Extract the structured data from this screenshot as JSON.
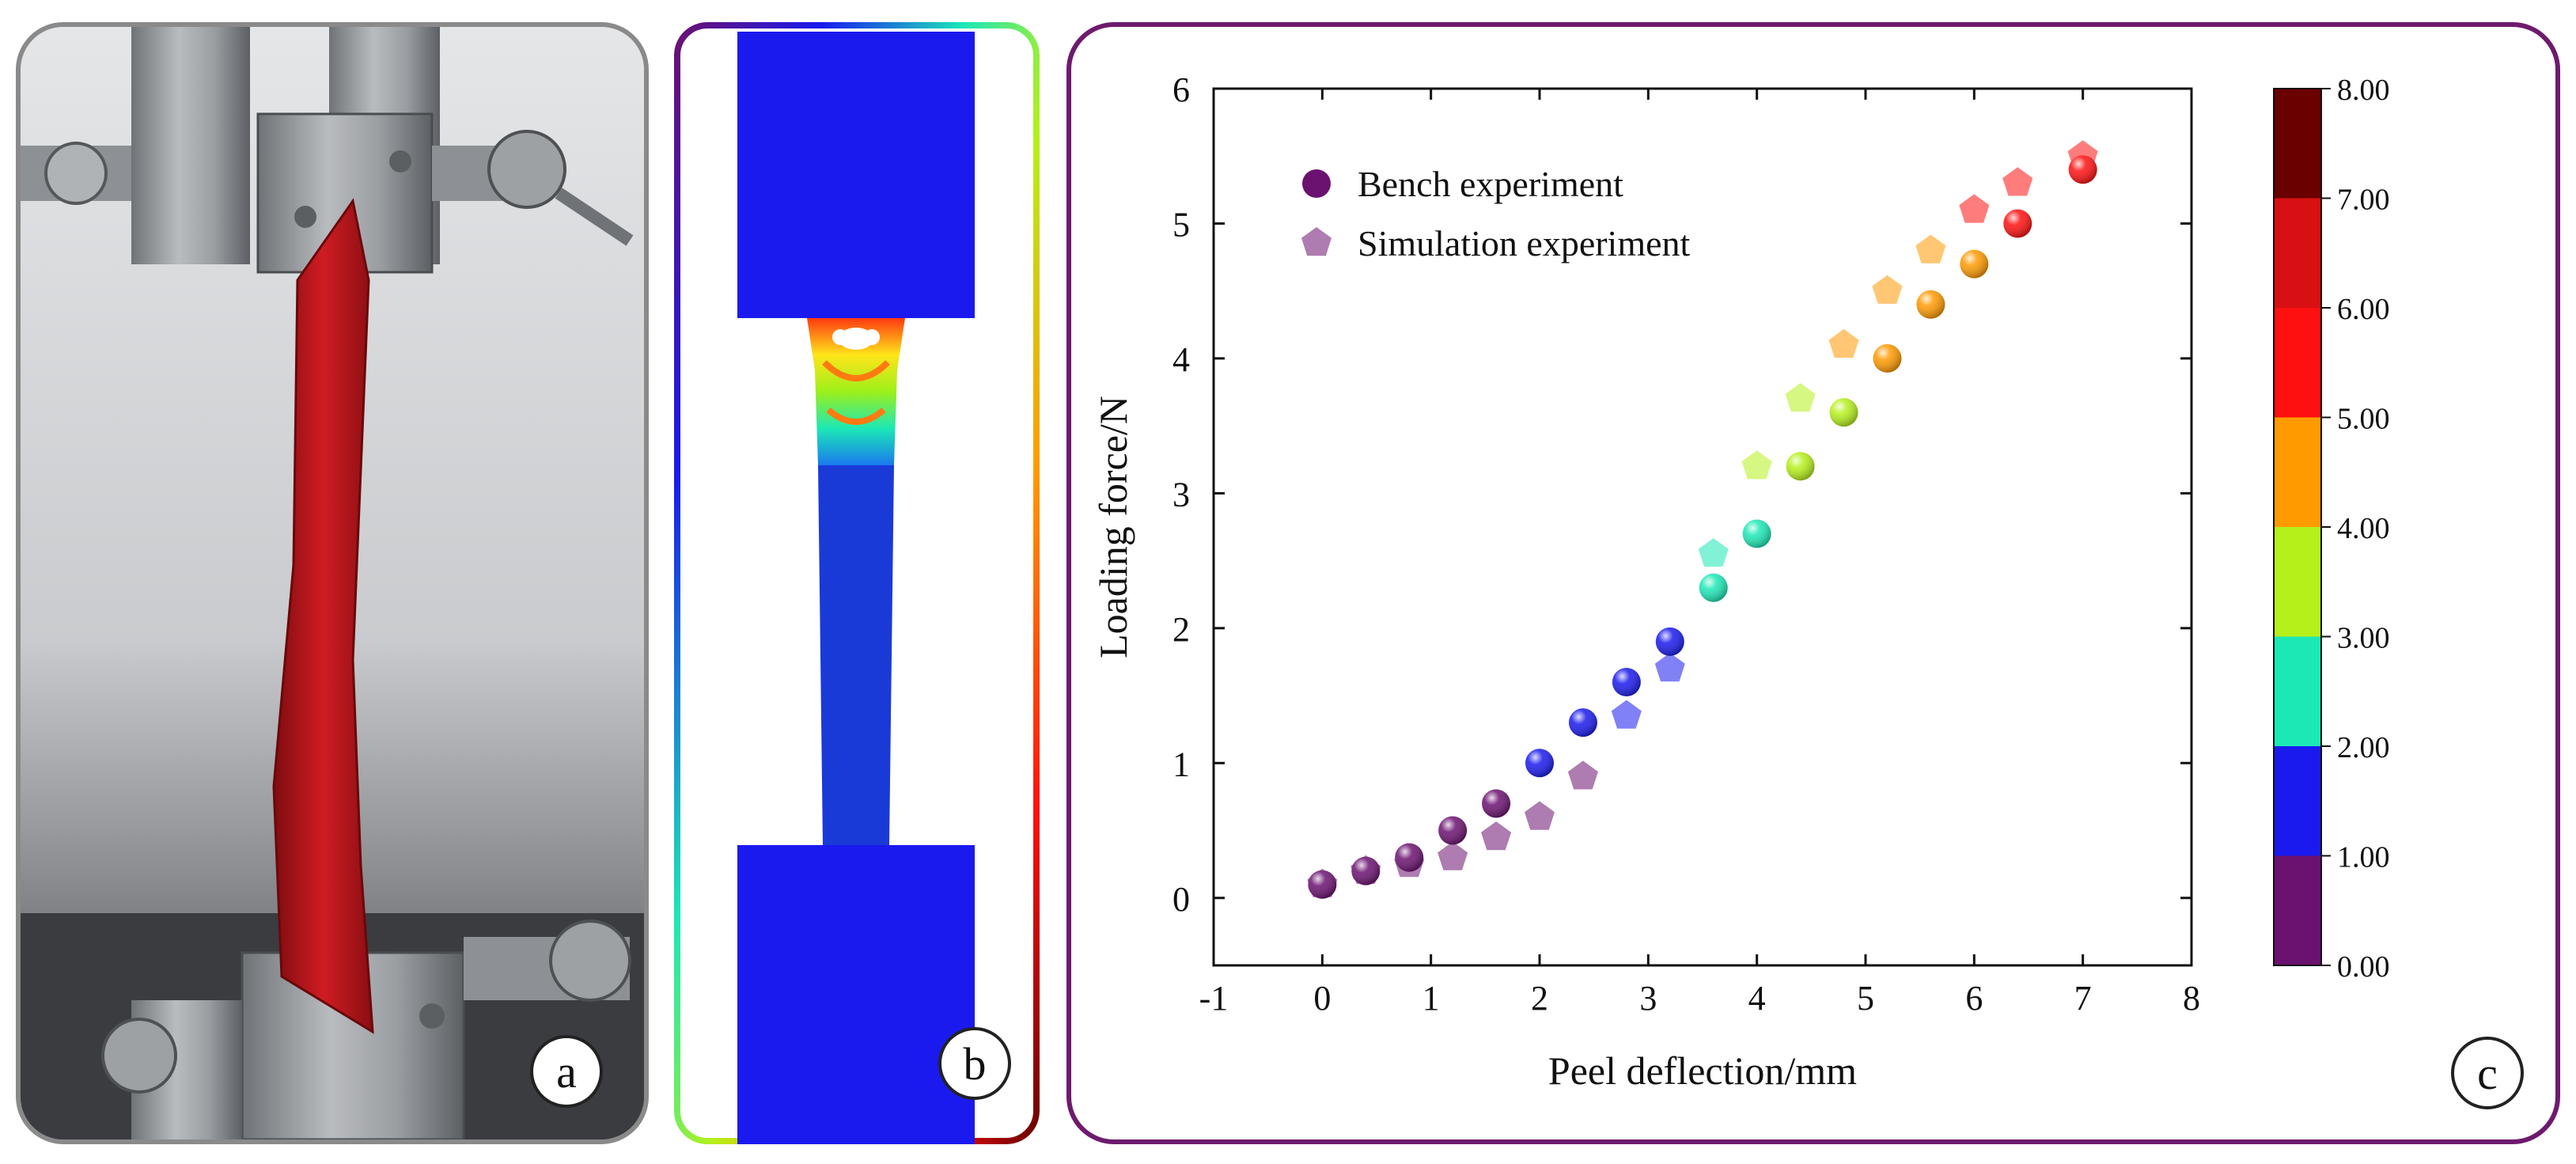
{
  "panels": {
    "a": {
      "label": "a"
    },
    "b": {
      "label": "b"
    },
    "c": {
      "label": "c"
    }
  },
  "colors": {
    "frame_a": "#8a8a8a",
    "frame_c": "#6e1a6e",
    "specimen": "#c41a1e",
    "mesh_blue": "#1a1aee",
    "pentagon_tint": 0.45
  },
  "colorbar": {
    "ticks": [
      "0.00",
      "1.00",
      "2.00",
      "3.00",
      "4.00",
      "5.00",
      "6.00",
      "7.00",
      "8.00"
    ],
    "colors": [
      "#6b1170",
      "#1a1aee",
      "#1ce8b6",
      "#b5f01a",
      "#ff9a00",
      "#ff1010",
      "#d81014",
      "#6a0000"
    ]
  },
  "chart_data": {
    "type": "scatter",
    "xlabel": "Peel deflection/mm",
    "ylabel": "Loading force/N",
    "xlim": [
      -1,
      8
    ],
    "ylim": [
      -0.5,
      6
    ],
    "xticks": [
      "-1",
      "0",
      "1",
      "2",
      "3",
      "4",
      "5",
      "6",
      "7",
      "8"
    ],
    "yticks": [
      "0",
      "1",
      "2",
      "3",
      "4",
      "5",
      "6"
    ],
    "legend_position": "top-left",
    "grid": false,
    "series": [
      {
        "name": "Bench experiment",
        "marker": "sphere",
        "x": [
          0,
          0.4,
          0.8,
          1.2,
          1.6,
          2.0,
          2.4,
          2.8,
          3.2,
          3.6,
          4.0,
          4.4,
          4.8,
          5.2,
          5.6,
          6.0,
          6.4,
          7.0
        ],
        "y": [
          0.1,
          0.2,
          0.3,
          0.5,
          0.7,
          1.0,
          1.3,
          1.6,
          1.9,
          2.3,
          2.7,
          3.2,
          3.6,
          4.0,
          4.4,
          4.7,
          5.0,
          5.4
        ]
      },
      {
        "name": "Simulation experiment",
        "marker": "pentagon",
        "x": [
          0,
          0.4,
          0.8,
          1.2,
          1.6,
          2.0,
          2.4,
          2.8,
          3.2,
          3.6,
          4.0,
          4.4,
          4.8,
          5.2,
          5.6,
          6.0,
          6.4,
          7.0
        ],
        "y": [
          0.1,
          0.2,
          0.25,
          0.3,
          0.45,
          0.6,
          0.9,
          1.35,
          1.7,
          2.55,
          3.2,
          3.7,
          4.1,
          4.5,
          4.8,
          5.1,
          5.3,
          5.5
        ]
      }
    ]
  }
}
